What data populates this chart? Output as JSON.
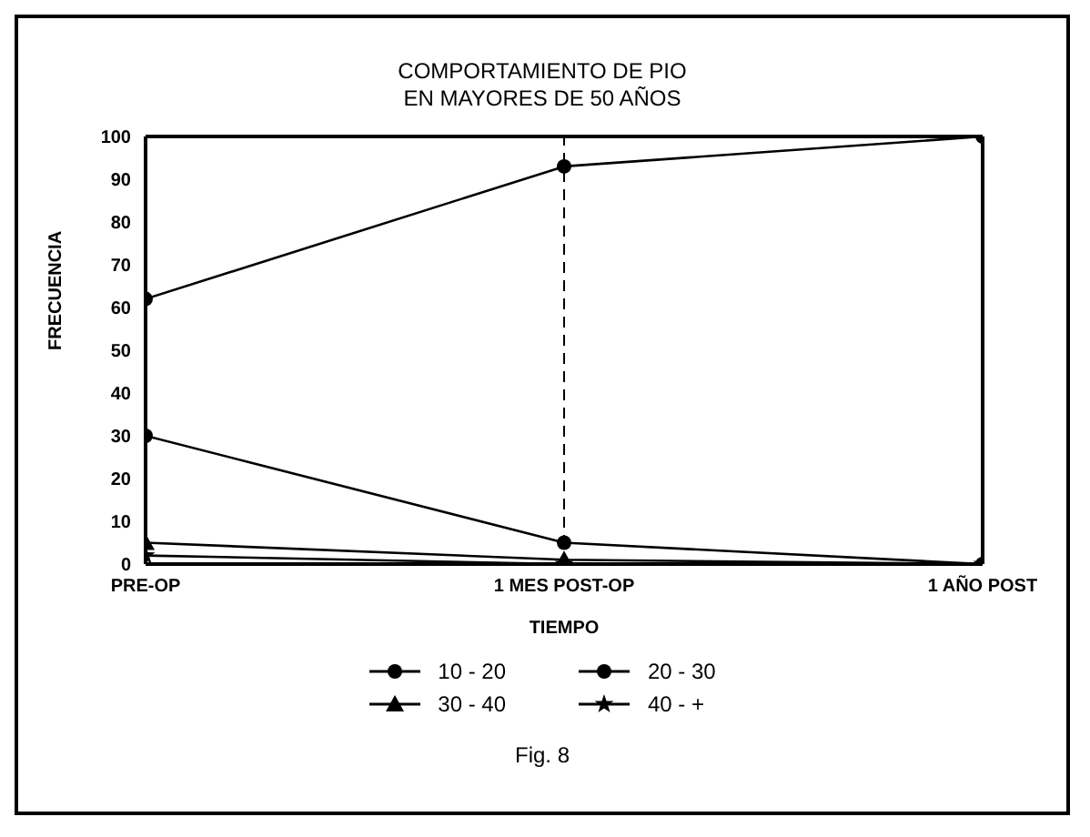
{
  "chart_data": {
    "type": "line",
    "title": "COMPORTAMIENTO DE PIO\nEN MAYORES DE 50 AÑOS",
    "xlabel": "TIEMPO",
    "ylabel": "FRECUENCIA",
    "categories": [
      "PRE-OP",
      "1 MES POST-OP",
      "1 AÑO POST"
    ],
    "series": [
      {
        "name": "10 - 20",
        "color": "#000000",
        "marker": "circle",
        "values": [
          62,
          93,
          100
        ]
      },
      {
        "name": "20 - 30",
        "color": "#000000",
        "marker": "circle",
        "values": [
          30,
          5,
          0
        ]
      },
      {
        "name": "30 - 40",
        "color": "#000000",
        "marker": "triangle",
        "values": [
          5,
          1,
          0
        ]
      },
      {
        "name": "40 - +",
        "color": "#000000",
        "marker": "star",
        "values": [
          2,
          0,
          0
        ]
      }
    ],
    "ylim": [
      0,
      100
    ],
    "yticks": [
      0,
      10,
      20,
      30,
      40,
      50,
      60,
      70,
      80,
      90,
      100
    ],
    "ref_lines": [
      {
        "axis": "x",
        "value": "1 MES POST-OP",
        "line_style": "dashed",
        "color": "#000000"
      }
    ],
    "legend": "bottom",
    "line_style": "solid",
    "annotations": [
      "Fig. 8"
    ]
  }
}
